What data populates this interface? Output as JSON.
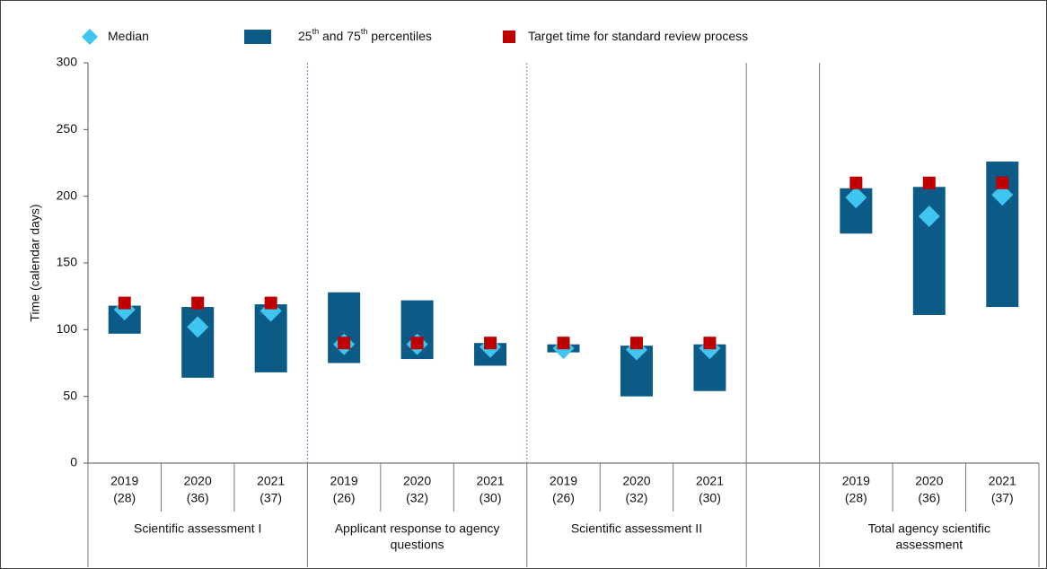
{
  "chart_data": {
    "type": "range",
    "y_label": "Time (calendar days)",
    "ylim": [
      0,
      300
    ],
    "yticks": [
      0,
      50,
      100,
      150,
      200,
      250,
      300
    ],
    "legend": [
      {
        "name": "Median",
        "color": "#3ec6f0"
      },
      {
        "name": "25th and 75th percentiles",
        "color": "#0b5b86"
      },
      {
        "name": "Target time for standard review process",
        "color": "#c00000"
      }
    ],
    "groups": [
      {
        "label": [
          "Scientific assessment I"
        ],
        "categories": [
          "2019",
          "2020",
          "2021"
        ],
        "counts": [
          "(28)",
          "(36)",
          "(37)"
        ],
        "p25": [
          97,
          64,
          68
        ],
        "p75": [
          118,
          117,
          119
        ],
        "median": [
          115,
          102,
          114
        ],
        "target": [
          120,
          120,
          120
        ]
      },
      {
        "label": [
          "Applicant response to agency",
          "questions"
        ],
        "categories": [
          "2019",
          "2020",
          "2021"
        ],
        "counts": [
          "(26)",
          "(32)",
          "(30)"
        ],
        "p25": [
          75,
          78,
          73
        ],
        "p75": [
          128,
          122,
          90
        ],
        "median": [
          89,
          89,
          87
        ],
        "target": [
          90,
          90,
          90
        ]
      },
      {
        "label": [
          "Scientific assessment II"
        ],
        "categories": [
          "2019",
          "2020",
          "2021"
        ],
        "counts": [
          "(26)",
          "(32)",
          "(30)"
        ],
        "p25": [
          83,
          50,
          54
        ],
        "p75": [
          89,
          88,
          89
        ],
        "median": [
          86,
          85,
          86
        ],
        "target": [
          90,
          90,
          90
        ]
      },
      {
        "label": [
          "Total agency scientific",
          "assessment"
        ],
        "categories": [
          "2019",
          "2020",
          "2021"
        ],
        "counts": [
          "(28)",
          "(36)",
          "(37)"
        ],
        "p25": [
          172,
          111,
          117
        ],
        "p75": [
          206,
          207,
          226
        ],
        "median": [
          199,
          185,
          201
        ],
        "target": [
          210,
          210,
          210
        ]
      }
    ]
  }
}
